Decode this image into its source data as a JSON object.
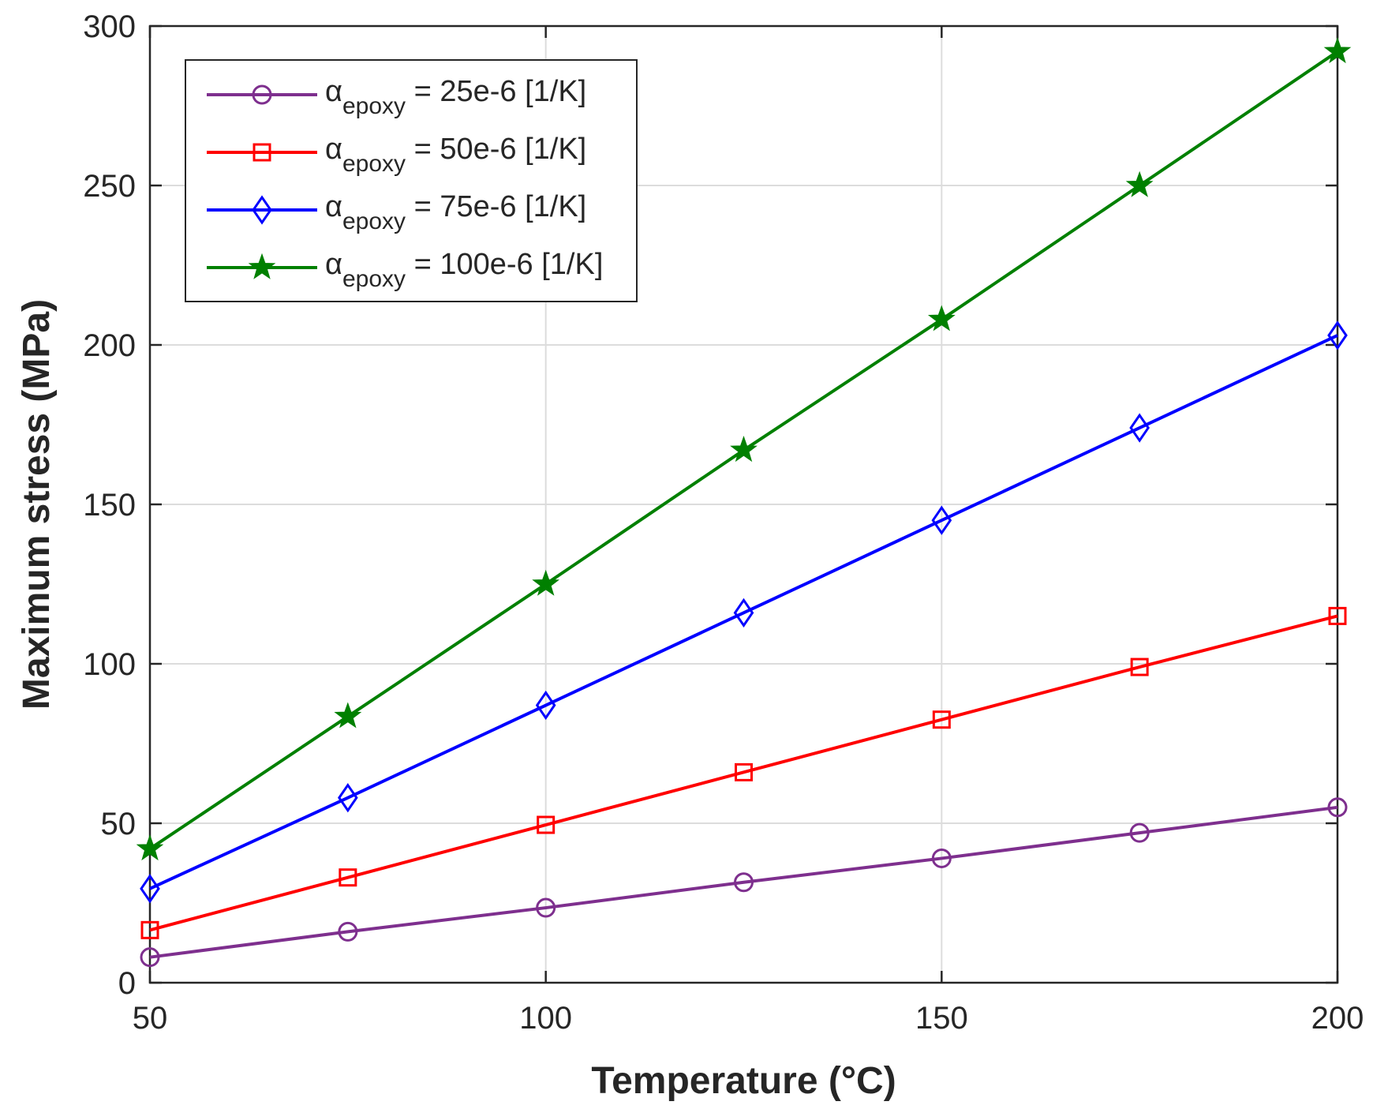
{
  "chart_data": {
    "type": "line",
    "title": "",
    "xlabel": "Temperature (°C)",
    "ylabel": "Maximum stress (MPa)",
    "xlim": [
      50,
      200
    ],
    "ylim": [
      0,
      300
    ],
    "xticks": [
      50,
      100,
      150,
      200
    ],
    "yticks": [
      0,
      50,
      100,
      150,
      200,
      250,
      300
    ],
    "grid": true,
    "legend_position": "top-left",
    "x": [
      50,
      75,
      100,
      125,
      150,
      175,
      200
    ],
    "series": [
      {
        "name": "α_epoxy = 25e-6 [1/K]",
        "legend_symbol": "α",
        "legend_subscript": "epoxy",
        "legend_suffix": " = 25e-6 [1/K]",
        "color": "#7E2F8E",
        "marker": "circle",
        "values": [
          8,
          16,
          23.5,
          31.5,
          39,
          47,
          55
        ]
      },
      {
        "name": "α_epoxy = 50e-6 [1/K]",
        "legend_symbol": "α",
        "legend_subscript": "epoxy",
        "legend_suffix": " = 50e-6 [1/K]",
        "color": "#FF0000",
        "marker": "square",
        "values": [
          16.5,
          33,
          49.5,
          66,
          82.5,
          99,
          115
        ]
      },
      {
        "name": "α_epoxy = 75e-6 [1/K]",
        "legend_symbol": "α",
        "legend_subscript": "epoxy",
        "legend_suffix": " = 75e-6 [1/K]",
        "color": "#0000FF",
        "marker": "diamond",
        "values": [
          29.5,
          58,
          87,
          116,
          145,
          174,
          203
        ]
      },
      {
        "name": "α_epoxy = 100e-6 [1/K]",
        "legend_symbol": "α",
        "legend_subscript": "epoxy",
        "legend_suffix": " = 100e-6 [1/K]",
        "color": "#008000",
        "marker": "star",
        "values": [
          42,
          83.5,
          125,
          167,
          208,
          250,
          292
        ]
      }
    ]
  }
}
